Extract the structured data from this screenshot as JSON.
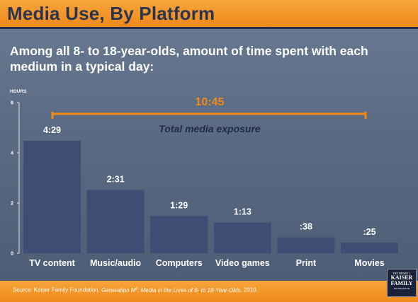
{
  "title": "Media Use, By Platform",
  "subtitle": "Among all 8- to 18-year-olds, amount of time spent with each medium in a typical day:",
  "source_prefix": "Source: Kaiser Family Foundation, ",
  "source_title_a": "Generation M",
  "source_title_sup": "2",
  "source_title_b": ": Media in the Lives of 8- to 18-Year-Olds",
  "source_suffix": ", 2010.",
  "logo": {
    "line1": "THE HENRY J.",
    "line2a": "KAISER",
    "line2b": "FAMILY",
    "line3": "FOUNDATION"
  },
  "colors": {
    "bar": "#3f4c74",
    "accent": "#f0891a",
    "total_text": "#1f2a4a"
  },
  "chart_data": {
    "type": "bar",
    "categories": [
      "TV content",
      "Music/audio",
      "Computers",
      "Video games",
      "Print",
      "Movies"
    ],
    "values": [
      4.48,
      2.52,
      1.48,
      1.22,
      0.63,
      0.42
    ],
    "data_labels": [
      "4:29",
      "2:31",
      "1:29",
      "1:13",
      ":38",
      ":25"
    ],
    "ylabel": "HOURS",
    "ylim": [
      0,
      6
    ],
    "yticks": [
      0,
      2,
      4,
      6
    ],
    "total_label": "10:45",
    "total_caption": "Total media exposure",
    "grid": false
  }
}
